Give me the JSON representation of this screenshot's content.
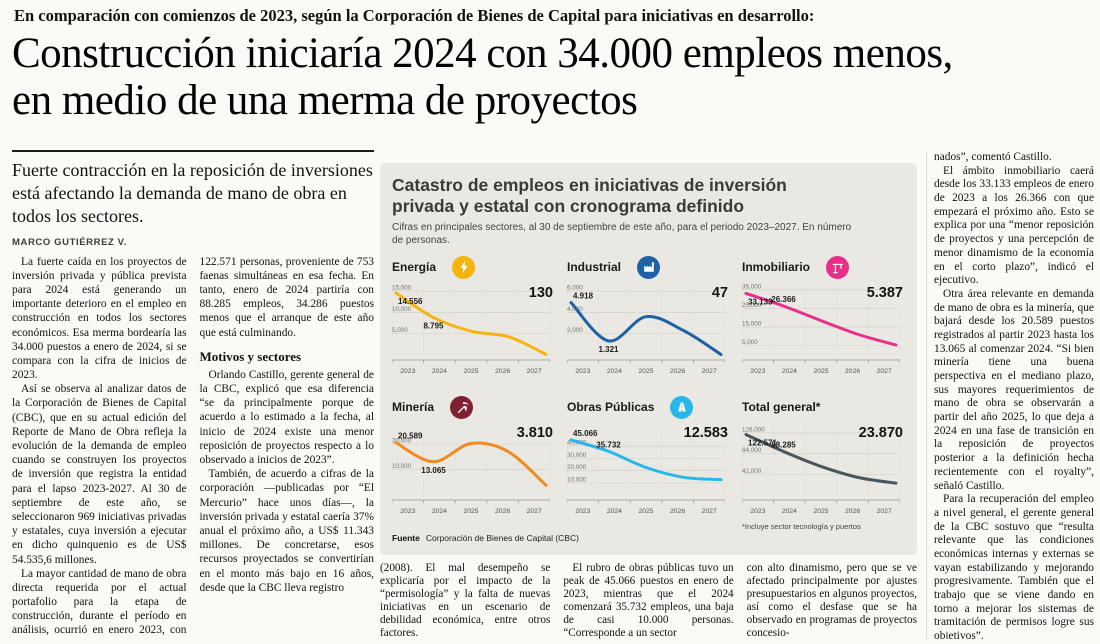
{
  "page": {
    "kicker": "En comparación con comienzos de 2023, según la Corporación de Bienes de Capital para iniciativas en desarrollo:",
    "headline": "Construcción iniciaría 2024 con 34.000 empleos menos, en medio de una merma de proyectos",
    "deck": "Fuerte contracción en la reposición de inversiones está afectando la demanda de mano de obra en todos los sectores.",
    "byline": "MARCO GUTIÉRREZ V."
  },
  "article": {
    "body": [
      "La fuerte caída en los proyectos de inversión privada y pública prevista para 2024 está generando un importante deterioro en el empleo en construcción en todos los sectores económicos. Esa merma bordearía las 34.000 puestos a enero de 2024, si se compara con la cifra de inicios de 2023.",
      "Así se observa al analizar datos de la Corporación de Bienes de Capital (CBC), que en su actual edición del Reporte de Mano de Obra refleja la evolución de la demanda de empleo cuando se construyen los proyectos de inversión que registra la entidad para el lapso 2023-2027. Al 30 de septiembre de este año, se seleccionaron 969 iniciativas privadas y estatales, cuya inversión a ejecutar en dicho quinquenio es de US$ 54.535,6 millones.",
      "La mayor cantidad de mano de obra directa requerida por el actual portafolio para la etapa de construcción, durante el período en análisis, ocurrió en enero 2023, con 122.571 personas, proveniente de 753 faenas simultáneas en esa fecha. En tanto, enero de 2024 partiría con 88.285 empleos, 34.286 puestos menos que el arranque de este año que está culminando.",
      "Orlando Castillo, gerente general de la CBC, explicó que esa diferencia “se da principalmente porque de acuerdo a lo estimado a la fecha, al inicio de 2024 existe una menor reposición de proyectos respecto a lo observado a inicios de 2023”.",
      "También, de acuerdo a cifras de la corporación —publicadas por “El Mercurio” hace unos días—, la inversión privada y estatal caería 37% anual el próximo año, a US$ 11.343 millones. De concretarse, esos recursos proyectados se convertirían en el monto más bajo en 16 años, desde que la CBC lleva registro"
    ],
    "subhead": "Motivos y sectores",
    "bottom": [
      "(2008). El mal desempeño se explicaría por el impacto de la “permisología” y la falta de nuevas iniciativas en un escenario de debilidad económica, entre otros factores.",
      "El rubro de obras públicas tuvo un peak de 45.066 puestos en enero de 2023, mientras que el 2024 comenzará 35.732 empleos, una baja de casi 10.000 personas. “Corresponde a un sector",
      "con alto dinamismo, pero que se ve afectado principalmente por ajustes presupuestarios en algunos proyectos, así como el desfase que se ha observado en programas de proyectos concesio-"
    ],
    "right": [
      "nados”, comentó Castillo.",
      "El ámbito inmobiliario caerá desde los 33.133 empleos de enero de 2023 a los 26.366 con que empezará el próximo año. Esto se explica por una “menor reposición de proyectos y una percepción de menor dinamismo de la economía en el corto plazo”, indicó el ejecutivo.",
      "Otra área relevante en demanda de mano de obra es la minería, que bajará desde los 20.589 puestos registrados al partir 2023 hasta los 13.065 al comenzar 2024. “Si bien minería tiene una buena perspectiva en el mediano plazo, sus mayores requerimientos de mano de obra se observarán a partir del año 2025, lo que deja a 2024 en una fase de transición en la reposición de proyectos posterior a la definición hecha recientemente con el royalty”, señaló Castillo.",
      "Para la recuperación del empleo a nivel general, el gerente general de la CBC sostuvo que “resulta relevante que las condiciones económicas internas y externas se vayan estabilizando y mejorando progresivamente. También que el trabajo que se viene dando en torno a mejorar los sistemas de tramitación de permisos logre sus objetivos”."
    ]
  },
  "panel": {
    "title": "Catastro de empleos en iniciativas de inversión privada y estatal con cronograma definido",
    "subtitle": "Cifras en principales sectores, al 30 de septiembre de este año, para el periodo 2023–2027. En número de personas.",
    "footnote": "*Incluye sector tecnología y puertos",
    "source_label": "Fuente",
    "source": "Corporación de Bienes de Capital (CBC)"
  },
  "chart_data": [
    {
      "type": "line",
      "name": "Energía",
      "icon": "lightning-icon",
      "icon_bg": "#F6B40E",
      "color": "#F6B40E",
      "x": [
        "2023",
        "2024",
        "2025",
        "2026",
        "2027"
      ],
      "values": [
        14556,
        8795,
        5600,
        4300,
        130
      ],
      "ymax": 15500,
      "yticks": [
        {
          "label": "15,000",
          "v": 15000
        },
        {
          "label": "10,000",
          "v": 10000
        },
        {
          "label": "5,000",
          "v": 5000
        }
      ],
      "start_label": "14.556",
      "mid_label": "8.795",
      "final_label": "130",
      "mid_below": true
    },
    {
      "type": "line",
      "name": "Industrial",
      "icon": "factory-icon",
      "icon_bg": "#1E62A5",
      "color": "#1E62A5",
      "x": [
        "2023",
        "2024",
        "2025",
        "2026",
        "2027"
      ],
      "values": [
        4918,
        1321,
        3600,
        2300,
        47
      ],
      "ymax": 6200,
      "yticks": [
        {
          "label": "6,000",
          "v": 6000
        },
        {
          "label": "4,000",
          "v": 4000
        },
        {
          "label": "2,000",
          "v": 2000
        }
      ],
      "start_label": "4.918",
      "mid_label": "1.321",
      "final_label": "47",
      "mid_below": true
    },
    {
      "type": "line",
      "name": "Inmobiliario",
      "icon": "crane-icon",
      "icon_bg": "#E8308A",
      "color": "#E8308A",
      "x": [
        "2023",
        "2024",
        "2025",
        "2026",
        "2027"
      ],
      "values": [
        33133,
        26366,
        18500,
        11000,
        5387
      ],
      "ymax": 35500,
      "yticks": [
        {
          "label": "35,000",
          "v": 35000
        },
        {
          "label": "25,000",
          "v": 25000
        },
        {
          "label": "15,000",
          "v": 15000
        },
        {
          "label": "5,000",
          "v": 5000
        }
      ],
      "start_label": "33.133",
      "mid_label": "26.366",
      "final_label": "5.387",
      "mid_below": false
    },
    {
      "type": "line",
      "name": "Minería",
      "icon": "pickaxe-icon",
      "icon_bg": "#7E2230",
      "color": "#EF8B1F",
      "x": [
        "2023",
        "2024",
        "2025",
        "2026",
        "2027"
      ],
      "values": [
        20589,
        13065,
        20300,
        17000,
        3810
      ],
      "ymax": 26000,
      "yticks": [
        {
          "label": "20,000",
          "v": 20000
        },
        {
          "label": "10,000",
          "v": 10000
        }
      ],
      "start_label": "20.589",
      "mid_label": "13.065",
      "final_label": "3.810",
      "mid_below": true
    },
    {
      "type": "line",
      "name": "Obras Públicas",
      "icon": "road-icon",
      "icon_bg": "#29B7E8",
      "color": "#29B7E8",
      "x": [
        "2023",
        "2024",
        "2025",
        "2026",
        "2027"
      ],
      "values": [
        45066,
        35732,
        22500,
        14500,
        12583
      ],
      "ymax": 54000,
      "yticks": [
        {
          "label": "40,000",
          "v": 40000
        },
        {
          "label": "30,000",
          "v": 30000
        },
        {
          "label": "20,000",
          "v": 20000
        },
        {
          "label": "10,000",
          "v": 10000
        }
      ],
      "start_label": "45.066",
      "mid_label": "35.732",
      "final_label": "12.583",
      "mid_below": false
    },
    {
      "type": "line",
      "name": "Total general*",
      "icon": null,
      "icon_bg": "#49565C",
      "color": "#49565C",
      "x": [
        "2023",
        "2024",
        "2025",
        "2026",
        "2027"
      ],
      "values": [
        122571,
        88285,
        58000,
        35500,
        23870
      ],
      "ymax": 134000,
      "yticks": [
        {
          "label": "126,000",
          "v": 126000
        },
        {
          "label": "84,000",
          "v": 84000
        },
        {
          "label": "42,000",
          "v": 42000
        }
      ],
      "start_label": "122.571",
      "mid_label": "88.285",
      "final_label": "23.870",
      "mid_below": false
    }
  ]
}
